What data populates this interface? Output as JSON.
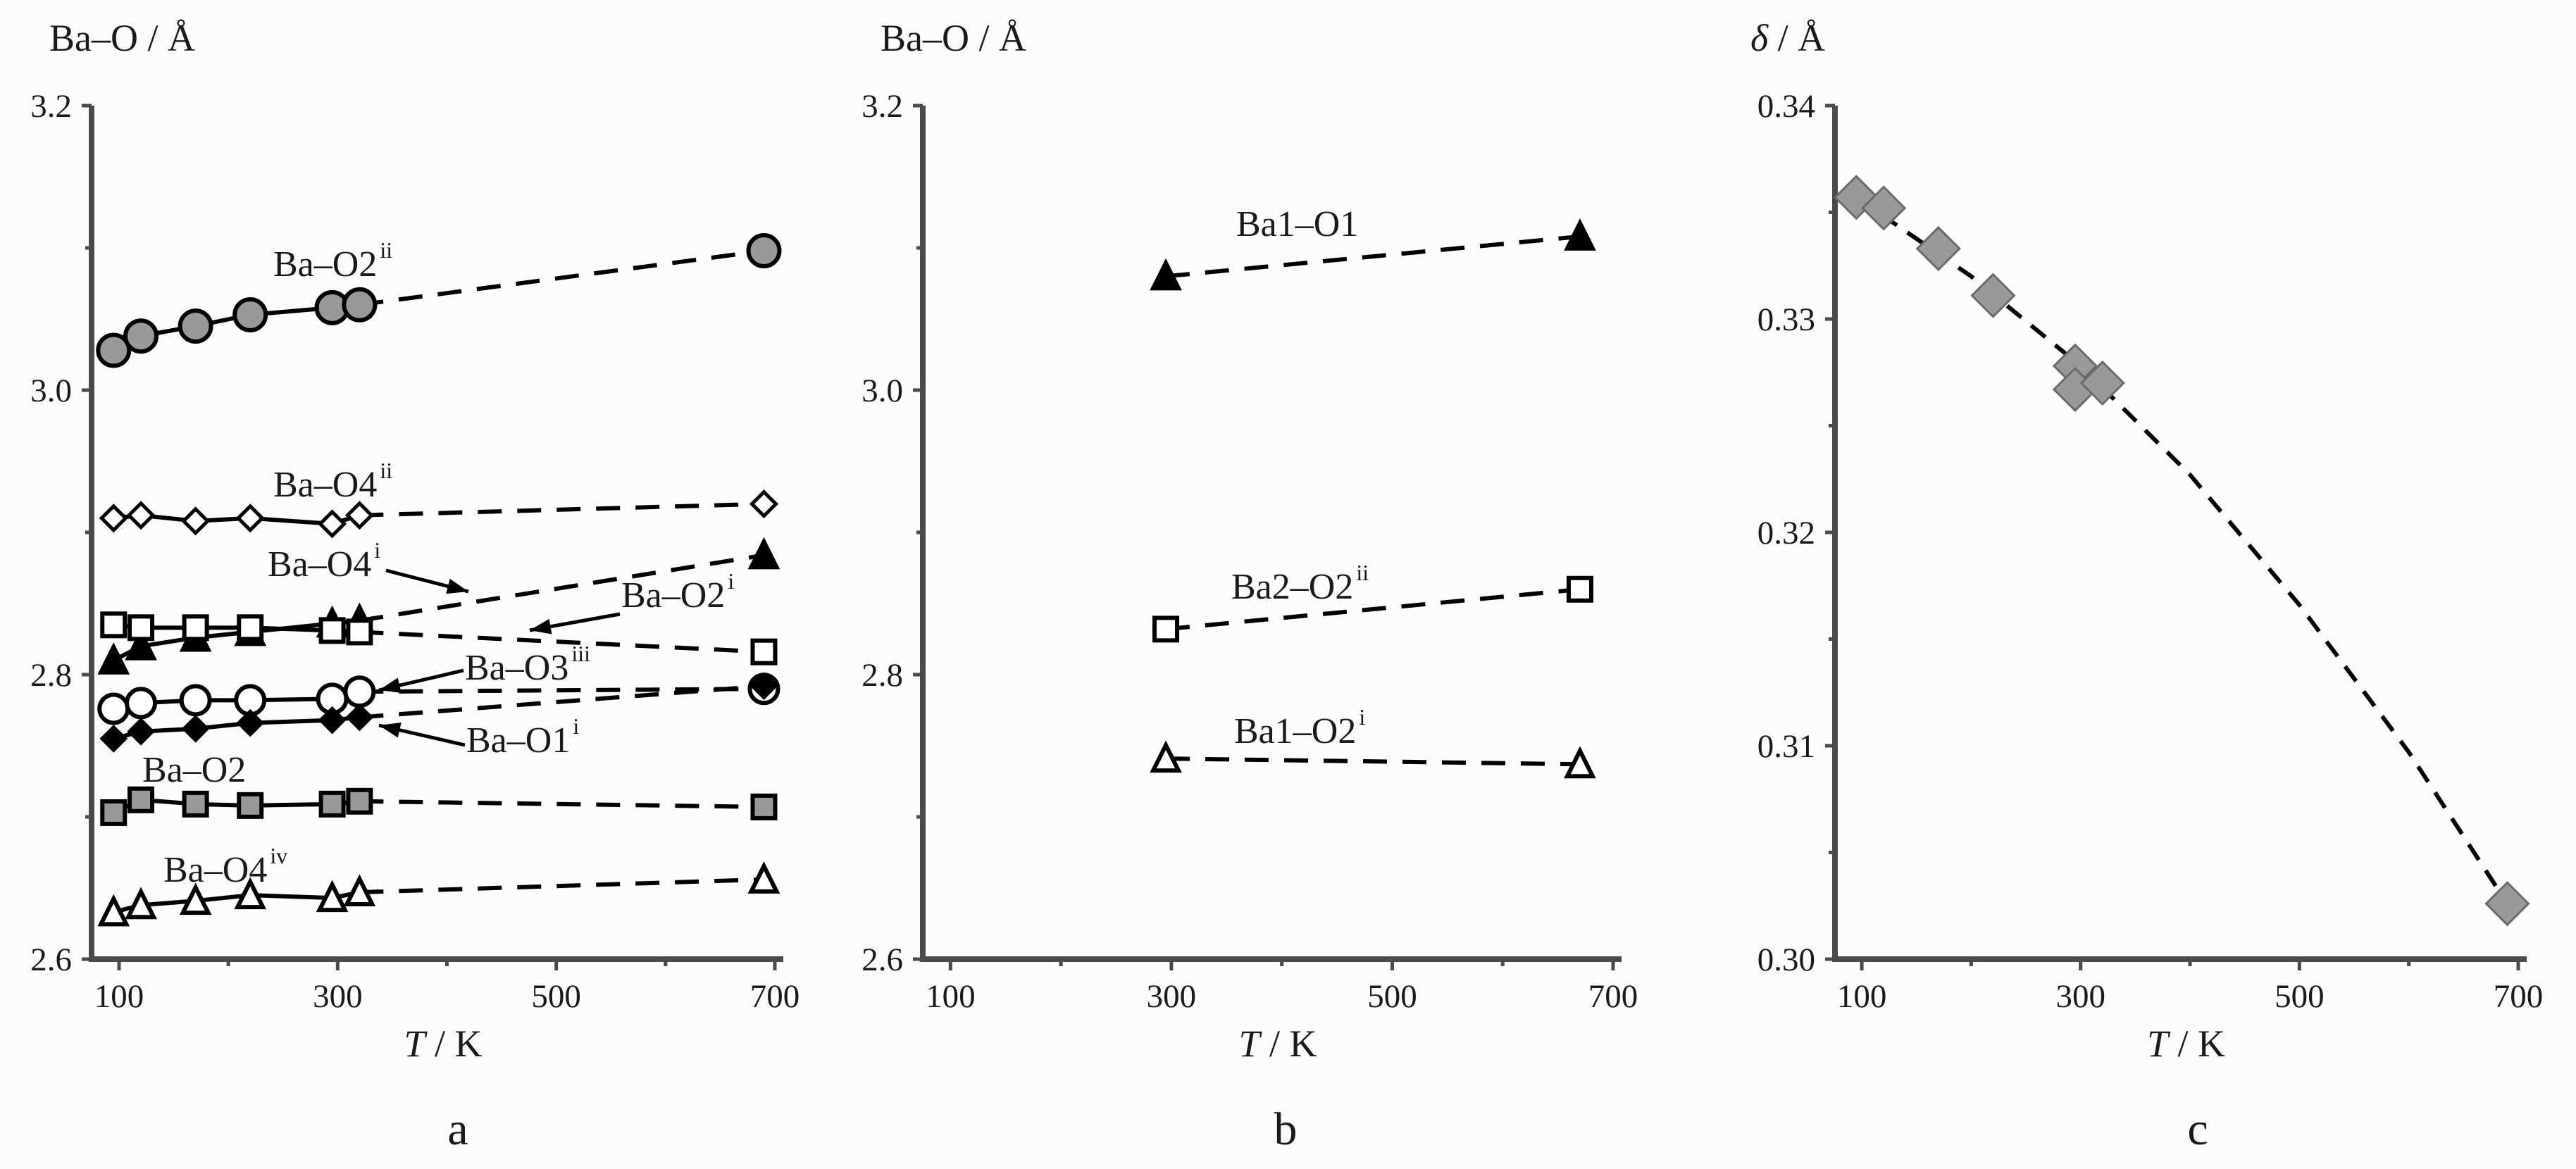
{
  "chart_data": [
    {
      "panel": "a",
      "type": "line",
      "ylabel": "Ba–O / Å",
      "xlabel_italic": "T",
      "xlabel_unit": " / K",
      "xlim": [
        80,
        700
      ],
      "ylim": [
        2.6,
        3.2
      ],
      "xticks": [
        100,
        300,
        500,
        700
      ],
      "yticks": [
        "2.6",
        "2.8",
        "3.0",
        "3.2"
      ],
      "series": [
        {
          "label": "Ba–O2",
          "sup": "ii",
          "marker": "circle",
          "fill": "#999999",
          "x": [
            95,
            120,
            170,
            220,
            295,
            320,
            690
          ],
          "y": [
            3.028,
            3.038,
            3.045,
            3.053,
            3.058,
            3.06,
            3.098
          ],
          "solid_to": 5
        },
        {
          "label": "Ba–O4",
          "sup": "ii",
          "marker": "diamond",
          "fill": "#ffffff",
          "x": [
            95,
            120,
            170,
            220,
            295,
            320,
            690
          ],
          "y": [
            2.91,
            2.912,
            2.908,
            2.91,
            2.906,
            2.912,
            2.92
          ],
          "solid_to": 5
        },
        {
          "label": "Ba–O4",
          "sup": "i",
          "marker": "triangle",
          "fill": "#000000",
          "x": [
            95,
            120,
            170,
            220,
            295,
            320,
            690
          ],
          "y": [
            2.81,
            2.82,
            2.826,
            2.83,
            2.836,
            2.838,
            2.884
          ],
          "solid_to": 5
        },
        {
          "label": "Ba–O2",
          "sup": "i",
          "marker": "square",
          "fill": "#ffffff",
          "x": [
            95,
            120,
            170,
            220,
            295,
            320,
            690
          ],
          "y": [
            2.835,
            2.833,
            2.833,
            2.833,
            2.831,
            2.83,
            2.816
          ],
          "solid_to": 5
        },
        {
          "label": "Ba–O3",
          "sup": "iii",
          "marker": "circle",
          "fill": "#ffffff",
          "x": [
            95,
            120,
            170,
            220,
            295,
            320,
            690
          ],
          "y": [
            2.776,
            2.78,
            2.782,
            2.782,
            2.783,
            2.788,
            2.79
          ],
          "solid_to": 5
        },
        {
          "label": "Ba–O1",
          "sup": "i",
          "marker": "diamond",
          "fill": "#000000",
          "x": [
            95,
            120,
            170,
            220,
            295,
            320,
            690
          ],
          "y": [
            2.755,
            2.76,
            2.762,
            2.766,
            2.768,
            2.77,
            2.792
          ],
          "solid_to": 5
        },
        {
          "label": "Ba–O2",
          "sup": "",
          "marker": "square",
          "fill": "#999999",
          "x": [
            95,
            120,
            170,
            220,
            295,
            320,
            690
          ],
          "y": [
            2.703,
            2.712,
            2.709,
            2.708,
            2.709,
            2.711,
            2.707
          ],
          "solid_to": 5
        },
        {
          "label": "Ba–O4",
          "sup": "iv",
          "marker": "triangle",
          "fill": "#ffffff",
          "x": [
            95,
            120,
            170,
            220,
            295,
            320,
            690
          ],
          "y": [
            2.633,
            2.638,
            2.641,
            2.645,
            2.643,
            2.647,
            2.656
          ],
          "solid_to": 5
        }
      ]
    },
    {
      "panel": "b",
      "type": "line",
      "ylabel": "Ba–O / Å",
      "xlabel_italic": "T",
      "xlabel_unit": " / K",
      "xlim": [
        80,
        700
      ],
      "ylim": [
        2.6,
        3.2
      ],
      "xticks": [
        100,
        300,
        500,
        700
      ],
      "yticks": [
        "2.6",
        "2.8",
        "3.0",
        "3.2"
      ],
      "series": [
        {
          "label": "Ba1–O1",
          "sup": "",
          "marker": "triangle",
          "fill": "#000000",
          "x": [
            295,
            670
          ],
          "y": [
            3.08,
            3.108
          ],
          "solid_to": 0
        },
        {
          "label": "Ba2–O2",
          "sup": "ii",
          "marker": "square",
          "fill": "#ffffff",
          "x": [
            295,
            670
          ],
          "y": [
            2.832,
            2.86
          ],
          "solid_to": 0
        },
        {
          "label": "Ba1–O2",
          "sup": "i",
          "marker": "triangle",
          "fill": "#ffffff",
          "x": [
            295,
            670
          ],
          "y": [
            2.741,
            2.737
          ],
          "solid_to": 0
        }
      ]
    },
    {
      "panel": "c",
      "type": "scatter",
      "ylabel_italic": "δ",
      "ylabel_unit": " / Å",
      "xlabel_italic": "T",
      "xlabel_unit": " / K",
      "xlim": [
        80,
        700
      ],
      "ylim": [
        0.3,
        0.34
      ],
      "xticks": [
        100,
        300,
        500,
        700
      ],
      "yticks": [
        "0.30",
        "0.31",
        "0.32",
        "0.33",
        "0.34"
      ],
      "points": {
        "x": [
          95,
          120,
          170,
          220,
          295,
          295,
          320,
          690
        ],
        "y": [
          0.3357,
          0.3352,
          0.3333,
          0.3311,
          0.3278,
          0.3267,
          0.327,
          0.3026
        ]
      },
      "fit": {
        "style": "dashed",
        "x": [
          95,
          200,
          300,
          400,
          500,
          600,
          690
        ],
        "y": [
          0.3357,
          0.332,
          0.3278,
          0.3227,
          0.3166,
          0.3097,
          0.3026
        ]
      }
    }
  ]
}
